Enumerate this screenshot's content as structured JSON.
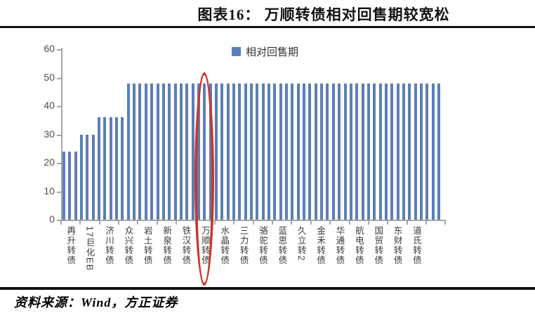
{
  "header": {
    "title": "图表16： 万顺转债相对回售期较宽松"
  },
  "legend": {
    "label": "相对回售期",
    "swatch_color": "#5B80B4"
  },
  "footer": {
    "source": "资料来源：Wind，方正证券"
  },
  "chart_data": {
    "type": "bar",
    "title": "图表16： 万顺转债相对回售期较宽松",
    "series_name": "相对回售期",
    "xlabel": "",
    "ylabel": "",
    "ylim": [
      0,
      60
    ],
    "yticks": [
      0,
      10,
      20,
      30,
      40,
      50,
      60
    ],
    "grid": false,
    "legend_position": "top-center",
    "bar_color": "#5B80B4",
    "axis_color": "#A6A6A6",
    "n_bars": 65,
    "bars_per_label": 3,
    "x_tick_labels": [
      "再升转债",
      "17巨化EB",
      "济川转债",
      "众兴转债",
      "岩土转债",
      "新泉转债",
      "铁汉转债",
      "万顺转债",
      "水晶转债",
      "三力转债",
      "骆驼转债",
      "蓝思转债",
      "久立转2",
      "金禾转债",
      "华通转债",
      "航电转债",
      "国贸转债",
      "东财转债",
      "道氏转债"
    ],
    "values": [
      24,
      24,
      24,
      30,
      30,
      30,
      36,
      36,
      36,
      36,
      36,
      48,
      48,
      48,
      48,
      48,
      48,
      48,
      48,
      48,
      48,
      48,
      48,
      48,
      48,
      48,
      48,
      48,
      48,
      48,
      48,
      48,
      48,
      48,
      48,
      48,
      48,
      48,
      48,
      48,
      48,
      48,
      48,
      48,
      48,
      48,
      48,
      48,
      48,
      48,
      48,
      48,
      48,
      48,
      48,
      48,
      48,
      48,
      48,
      48,
      48,
      48,
      48,
      48,
      48
    ],
    "highlight": {
      "label": "万顺转债",
      "label_index": 7,
      "annotation": "red-ellipse",
      "color": "#C8372D"
    }
  }
}
